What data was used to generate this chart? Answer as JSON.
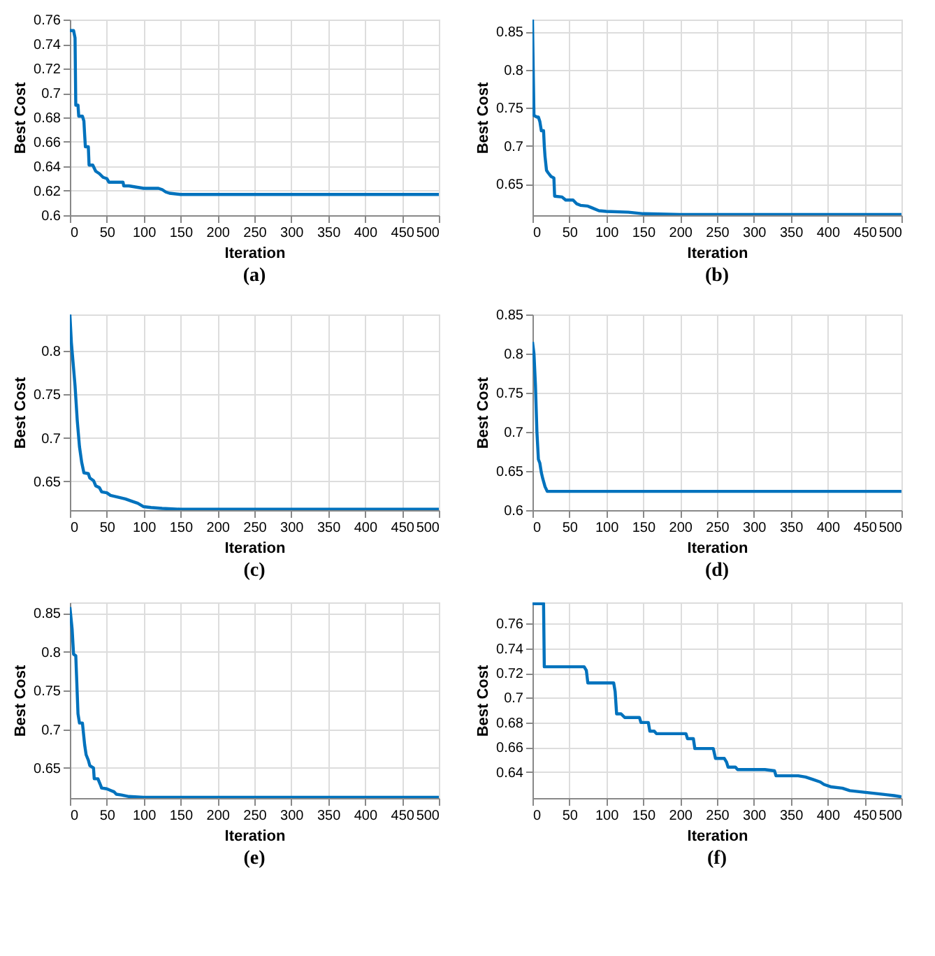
{
  "chart_data": [
    {
      "type": "line",
      "title": "(a)",
      "xlabel": "Iteration",
      "ylabel": "Best Cost",
      "xlim": [
        0,
        500
      ],
      "xticks": [
        0,
        50,
        100,
        150,
        200,
        250,
        300,
        350,
        400,
        450,
        500
      ],
      "ylim": [
        0.6,
        0.76
      ],
      "yticks": [
        0.6,
        0.62,
        0.64,
        0.66,
        0.68,
        0.7,
        0.72,
        0.74,
        0.76
      ],
      "grid": true,
      "x": [
        0,
        5,
        7,
        8,
        11,
        12,
        17,
        19,
        20,
        21,
        25,
        26,
        31,
        35,
        40,
        45,
        50,
        53,
        72,
        73,
        80,
        90,
        100,
        120,
        125,
        130,
        135,
        150,
        175,
        180,
        500
      ],
      "series": [
        {
          "color": "#0072bd",
          "values": [
            0.751,
            0.751,
            0.745,
            0.69,
            0.69,
            0.681,
            0.681,
            0.677,
            0.666,
            0.656,
            0.656,
            0.641,
            0.641,
            0.636,
            0.634,
            0.631,
            0.63,
            0.627,
            0.627,
            0.624,
            0.624,
            0.623,
            0.622,
            0.622,
            0.621,
            0.619,
            0.618,
            0.617,
            0.617,
            0.617,
            0.617
          ]
        }
      ]
    },
    {
      "type": "line",
      "title": "(b)",
      "xlabel": "Iteration",
      "ylabel": "Best Cost",
      "xlim": [
        0,
        500
      ],
      "xticks": [
        0,
        50,
        100,
        150,
        200,
        250,
        300,
        350,
        400,
        450,
        500
      ],
      "ylim": [
        0.609,
        0.866
      ],
      "yticks": [
        0.65,
        0.7,
        0.75,
        0.8,
        0.85
      ],
      "grid": true,
      "x": [
        0,
        1,
        2,
        6,
        8,
        10,
        12,
        15,
        16,
        17,
        19,
        21,
        25,
        29,
        30,
        40,
        45,
        55,
        60,
        65,
        75,
        80,
        90,
        100,
        130,
        150,
        200,
        500
      ],
      "series": [
        {
          "color": "#0072bd",
          "values": [
            0.866,
            0.8,
            0.74,
            0.738,
            0.738,
            0.732,
            0.72,
            0.72,
            0.7,
            0.686,
            0.668,
            0.665,
            0.66,
            0.658,
            0.634,
            0.633,
            0.629,
            0.629,
            0.624,
            0.622,
            0.621,
            0.619,
            0.615,
            0.614,
            0.613,
            0.611,
            0.61,
            0.61
          ]
        }
      ]
    },
    {
      "type": "line",
      "title": "(c)",
      "xlabel": "Iteration",
      "ylabel": "Best Cost",
      "xlim": [
        0,
        500
      ],
      "xticks": [
        0,
        50,
        100,
        150,
        200,
        250,
        300,
        350,
        400,
        450,
        500
      ],
      "ylim": [
        0.617,
        0.842
      ],
      "yticks": [
        0.65,
        0.7,
        0.75,
        0.8
      ],
      "grid": true,
      "x": [
        0,
        2,
        5,
        7,
        10,
        13,
        16,
        19,
        25,
        27,
        32,
        35,
        40,
        43,
        50,
        55,
        65,
        75,
        85,
        92,
        100,
        110,
        125,
        150,
        500
      ],
      "series": [
        {
          "color": "#0072bd",
          "values": [
            0.842,
            0.81,
            0.78,
            0.76,
            0.72,
            0.69,
            0.672,
            0.66,
            0.659,
            0.654,
            0.651,
            0.645,
            0.643,
            0.638,
            0.637,
            0.634,
            0.632,
            0.63,
            0.627,
            0.625,
            0.621,
            0.62,
            0.619,
            0.618,
            0.618
          ]
        }
      ]
    },
    {
      "type": "line",
      "title": "(d)",
      "xlabel": "Iteration",
      "ylabel": "Best Cost",
      "xlim": [
        0,
        500
      ],
      "xticks": [
        0,
        50,
        100,
        150,
        200,
        250,
        300,
        350,
        400,
        450,
        500
      ],
      "ylim": [
        0.6,
        0.85
      ],
      "yticks": [
        0.6,
        0.65,
        0.7,
        0.75,
        0.8,
        0.85
      ],
      "grid": true,
      "x": [
        0,
        2,
        4,
        6,
        8,
        10,
        12,
        14,
        17,
        20,
        500
      ],
      "series": [
        {
          "color": "#0072bd",
          "values": [
            0.815,
            0.8,
            0.76,
            0.7,
            0.665,
            0.66,
            0.648,
            0.64,
            0.63,
            0.624,
            0.624
          ]
        }
      ]
    },
    {
      "type": "line",
      "title": "(e)",
      "xlabel": "Iteration",
      "ylabel": "Best Cost",
      "xlim": [
        0,
        500
      ],
      "xticks": [
        0,
        50,
        100,
        150,
        200,
        250,
        300,
        350,
        400,
        450,
        500
      ],
      "ylim": [
        0.611,
        0.864
      ],
      "yticks": [
        0.65,
        0.7,
        0.75,
        0.8,
        0.85
      ],
      "grid": true,
      "x": [
        0,
        3,
        5,
        8,
        9,
        11,
        13,
        17,
        20,
        22,
        25,
        27,
        32,
        33,
        38,
        41,
        43,
        50,
        55,
        60,
        63,
        70,
        80,
        100,
        500
      ],
      "series": [
        {
          "color": "#0072bd",
          "values": [
            0.858,
            0.83,
            0.797,
            0.795,
            0.77,
            0.72,
            0.708,
            0.708,
            0.68,
            0.667,
            0.66,
            0.653,
            0.65,
            0.636,
            0.636,
            0.629,
            0.624,
            0.623,
            0.621,
            0.619,
            0.616,
            0.615,
            0.613,
            0.612,
            0.612
          ]
        }
      ]
    },
    {
      "type": "line",
      "title": "(f)",
      "xlabel": "Iteration",
      "ylabel": "Best Cost",
      "xlim": [
        0,
        500
      ],
      "xticks": [
        0,
        50,
        100,
        150,
        200,
        250,
        300,
        350,
        400,
        450,
        500
      ],
      "ylim": [
        0.619,
        0.777
      ],
      "yticks": [
        0.64,
        0.66,
        0.68,
        0.7,
        0.72,
        0.74,
        0.76
      ],
      "grid": true,
      "x": [
        0,
        15,
        16,
        70,
        73,
        75,
        110,
        112,
        114,
        120,
        125,
        145,
        147,
        157,
        159,
        165,
        168,
        208,
        210,
        218,
        220,
        245,
        248,
        260,
        263,
        265,
        275,
        278,
        315,
        328,
        330,
        360,
        370,
        380,
        390,
        395,
        405,
        420,
        430,
        445,
        460,
        475,
        490,
        500
      ],
      "series": [
        {
          "color": "#0072bd",
          "values": [
            0.776,
            0.776,
            0.725,
            0.725,
            0.722,
            0.712,
            0.712,
            0.705,
            0.687,
            0.687,
            0.684,
            0.684,
            0.68,
            0.68,
            0.673,
            0.673,
            0.671,
            0.671,
            0.667,
            0.667,
            0.659,
            0.659,
            0.651,
            0.651,
            0.648,
            0.644,
            0.644,
            0.642,
            0.642,
            0.641,
            0.637,
            0.637,
            0.636,
            0.634,
            0.632,
            0.63,
            0.628,
            0.627,
            0.625,
            0.624,
            0.623,
            0.622,
            0.621,
            0.62
          ]
        }
      ]
    }
  ]
}
